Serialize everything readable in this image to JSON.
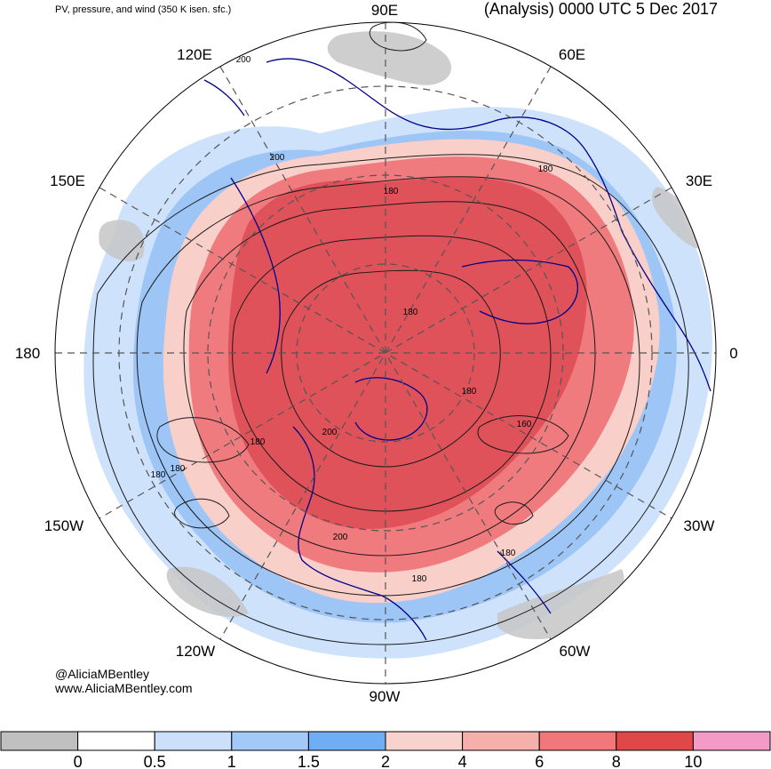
{
  "header": {
    "left_title": "PV, pressure, and wind (350 K isen. sfc.)",
    "right_title": "(Analysis) 0000 UTC 5 Dec 2017"
  },
  "longitude_labels": [
    "90E",
    "60E",
    "30E",
    "0",
    "30W",
    "60W",
    "90W",
    "120W",
    "150W",
    "180",
    "150E",
    "120E"
  ],
  "contour_labels": [
    "200",
    "200",
    "180",
    "180",
    "180",
    "180",
    "180",
    "160",
    "180",
    "180",
    "200",
    "180",
    "200",
    "180"
  ],
  "credit": {
    "handle": "@AliciaMBentley",
    "website": "www.AliciaMBentley.com"
  },
  "colorbar": {
    "colors": [
      "#c0c0c0",
      "#ffffff",
      "#cce0fb",
      "#a3c9f8",
      "#6fadf4",
      "#f8d2cc",
      "#f6b0ab",
      "#f2777a",
      "#e04848",
      "#f39ac6"
    ],
    "tick_labels": [
      "0",
      "0.5",
      "1",
      "1.5",
      "2",
      "4",
      "6",
      "8",
      "10"
    ]
  },
  "fill_colors": {
    "red_core": "#e0525a",
    "red_mid": "#f07b7e",
    "pink": "#f9cfc9",
    "blue_light": "#cfe2fb",
    "blue_mid": "#9dc5f6",
    "gray": "#c6c6c6",
    "coast": "#00008b"
  }
}
